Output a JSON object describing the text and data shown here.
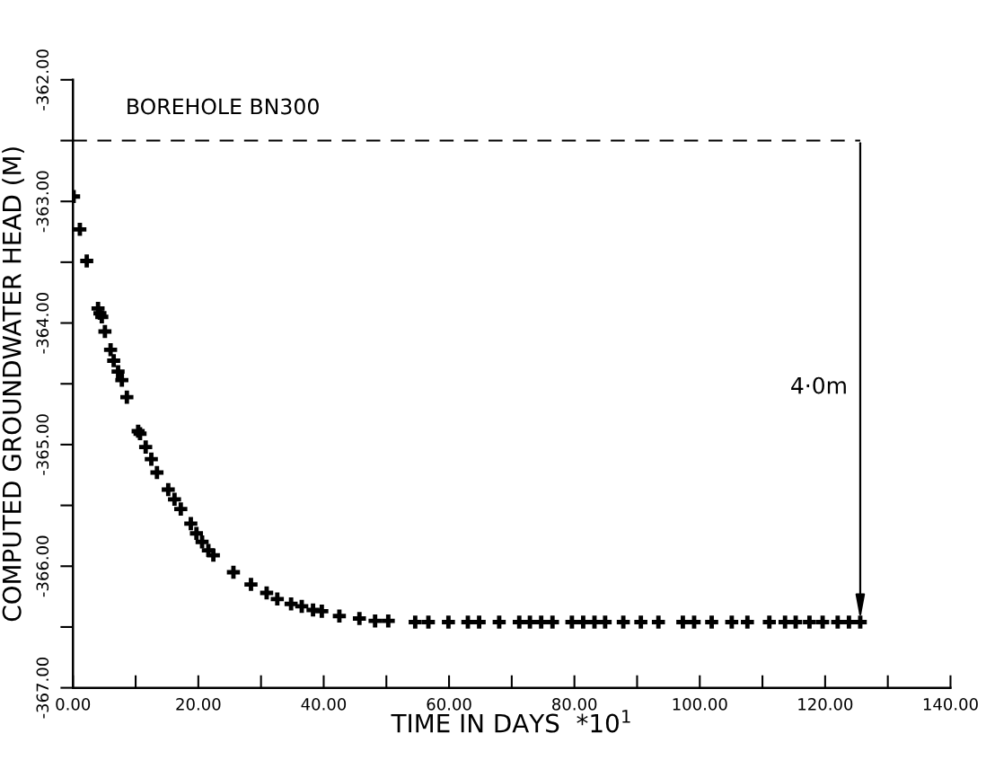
{
  "chart_data": {
    "type": "scatter",
    "title": "BOREHOLE BN300",
    "xlabel": "TIME IN DAYS  *10$^{1}$",
    "ylabel": "COMPUTED GROUNDWATER HEAD (M)",
    "marker": "cross",
    "grid": false,
    "annotations": [
      "4·0m"
    ],
    "xlim": [
      0,
      140
    ],
    "ylim": [
      -367,
      -362
    ],
    "xticks": [
      {
        "value": 0,
        "label": "0.00"
      },
      {
        "value": 10,
        "label": null
      },
      {
        "value": 20,
        "label": "20.00"
      },
      {
        "value": 30,
        "label": null
      },
      {
        "value": 40,
        "label": "40.00"
      },
      {
        "value": 50,
        "label": null
      },
      {
        "value": 60,
        "label": "60.00"
      },
      {
        "value": 70,
        "label": null
      },
      {
        "value": 80,
        "label": "80.00"
      },
      {
        "value": 90,
        "label": null
      },
      {
        "value": 100,
        "label": "100.00"
      },
      {
        "value": 110,
        "label": null
      },
      {
        "value": 120,
        "label": "120.00"
      },
      {
        "value": 130,
        "label": null
      },
      {
        "value": 140,
        "label": "140.00"
      }
    ],
    "yticks": [
      {
        "value": -367,
        "label": "-367.00"
      },
      {
        "value": -366.5,
        "label": null
      },
      {
        "value": -366,
        "label": "-366.00"
      },
      {
        "value": -365.5,
        "label": null
      },
      {
        "value": -365,
        "label": "-365.00"
      },
      {
        "value": -364.5,
        "label": null
      },
      {
        "value": -364,
        "label": "-364.00"
      },
      {
        "value": -363.5,
        "label": null
      },
      {
        "value": -363,
        "label": "-363.00"
      },
      {
        "value": -362.5,
        "label": null
      },
      {
        "value": -362,
        "label": "-362.00"
      }
    ],
    "ref_lines": [
      {
        "axis": "y",
        "value": -362.5,
        "line_style": "dashed",
        "color": "#000000"
      }
    ],
    "series": [
      {
        "color": "#000000",
        "x": [
          0.1,
          1.1,
          2.2,
          4.0,
          4.3,
          4.6,
          5.1,
          6.0,
          6.5,
          7.2,
          7.8,
          8.6,
          10.4,
          10.7,
          11.6,
          12.5,
          13.4,
          15.2,
          16.2,
          17.2,
          18.8,
          19.7,
          20.6,
          21.6,
          22.4,
          25.6,
          28.4,
          30.9,
          32.6,
          34.8,
          36.5,
          38.3,
          39.7,
          42.5,
          45.7,
          48.2,
          50.3,
          54.6,
          56.7,
          59.9,
          63.0,
          64.8,
          68.0,
          71.2,
          72.9,
          74.7,
          76.5,
          79.6,
          81.4,
          83.2,
          84.9,
          87.8,
          90.6,
          93.4,
          97.3,
          99.1,
          101.9,
          105.1,
          107.6,
          111.1,
          113.6,
          115.3,
          117.5,
          119.6,
          122.0,
          123.8,
          125.6
        ],
        "values": [
          -362.96,
          -363.23,
          -363.49,
          -363.88,
          -363.92,
          -363.95,
          -364.07,
          -364.22,
          -364.31,
          -364.4,
          -364.47,
          -364.61,
          -364.89,
          -364.91,
          -365.02,
          -365.12,
          -365.23,
          -365.37,
          -365.45,
          -365.53,
          -365.65,
          -365.73,
          -365.8,
          -365.87,
          -365.91,
          -366.05,
          -366.15,
          -366.22,
          -366.27,
          -366.31,
          -366.33,
          -366.36,
          -366.37,
          -366.41,
          -366.43,
          -366.45,
          -366.45,
          -366.46,
          -366.46,
          -366.46,
          -366.46,
          -366.46,
          -366.46,
          -366.46,
          -366.46,
          -366.46,
          -366.46,
          -366.46,
          -366.46,
          -366.46,
          -366.46,
          -366.46,
          -366.46,
          -366.46,
          -366.46,
          -366.46,
          -366.46,
          -366.46,
          -366.46,
          -366.46,
          -366.46,
          -366.46,
          -366.46,
          -366.46,
          -366.46,
          -366.46,
          -366.46
        ]
      }
    ]
  }
}
